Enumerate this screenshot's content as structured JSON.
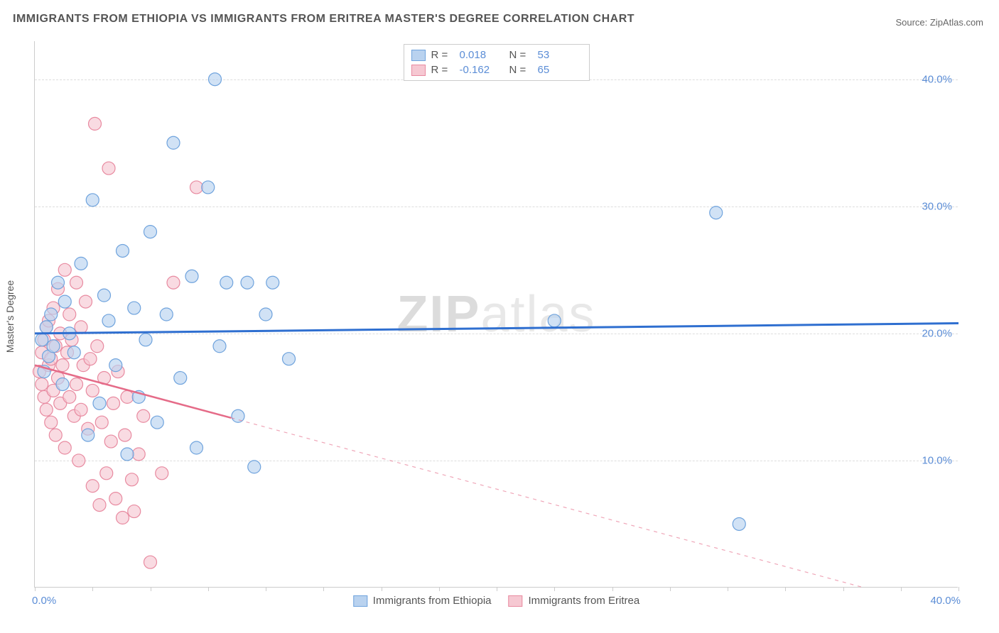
{
  "title": "IMMIGRANTS FROM ETHIOPIA VS IMMIGRANTS FROM ERITREA MASTER'S DEGREE CORRELATION CHART",
  "source": "Source: ZipAtlas.com",
  "ylabel": "Master's Degree",
  "watermark_a": "ZIP",
  "watermark_b": "atlas",
  "chart": {
    "type": "scatter",
    "xlim": [
      0,
      40
    ],
    "ylim": [
      0,
      43
    ],
    "yticks": [
      10,
      20,
      30,
      40
    ],
    "ytick_labels": [
      "10.0%",
      "20.0%",
      "30.0%",
      "40.0%"
    ],
    "xtick_left": "0.0%",
    "xtick_right": "40.0%",
    "background_color": "#ffffff",
    "grid_color": "#dddddd",
    "axis_color": "#cccccc",
    "series": [
      {
        "name": "Immigrants from Ethiopia",
        "color_fill": "#b9d2ef",
        "color_stroke": "#6fa3dd",
        "marker_radius": 9,
        "marker_opacity": 0.65,
        "r": "0.018",
        "n": "53",
        "trend": {
          "y_at_x0": 20.0,
          "y_at_xmax": 20.8,
          "stroke": "#2f6fd0",
          "width": 3,
          "dash_after_x": null
        },
        "points": [
          [
            0.3,
            19.5
          ],
          [
            0.4,
            17.0
          ],
          [
            0.5,
            20.5
          ],
          [
            0.6,
            18.2
          ],
          [
            0.7,
            21.5
          ],
          [
            0.8,
            19.0
          ],
          [
            1.0,
            24.0
          ],
          [
            1.2,
            16.0
          ],
          [
            1.3,
            22.5
          ],
          [
            1.5,
            20.0
          ],
          [
            1.7,
            18.5
          ],
          [
            2.0,
            25.5
          ],
          [
            2.3,
            12.0
          ],
          [
            2.5,
            30.5
          ],
          [
            2.8,
            14.5
          ],
          [
            3.0,
            23.0
          ],
          [
            3.2,
            21.0
          ],
          [
            3.5,
            17.5
          ],
          [
            3.8,
            26.5
          ],
          [
            4.0,
            10.5
          ],
          [
            4.3,
            22.0
          ],
          [
            4.5,
            15.0
          ],
          [
            4.8,
            19.5
          ],
          [
            5.0,
            28.0
          ],
          [
            5.3,
            13.0
          ],
          [
            5.7,
            21.5
          ],
          [
            6.0,
            35.0
          ],
          [
            6.3,
            16.5
          ],
          [
            6.8,
            24.5
          ],
          [
            7.0,
            11.0
          ],
          [
            7.5,
            31.5
          ],
          [
            7.8,
            40.0
          ],
          [
            8.0,
            19.0
          ],
          [
            8.3,
            24.0
          ],
          [
            8.8,
            13.5
          ],
          [
            9.2,
            24.0
          ],
          [
            9.5,
            9.5
          ],
          [
            10.0,
            21.5
          ],
          [
            10.3,
            24.0
          ],
          [
            11.0,
            18.0
          ],
          [
            22.5,
            21.0
          ],
          [
            29.5,
            29.5
          ],
          [
            30.5,
            5.0
          ]
        ]
      },
      {
        "name": "Immigrants from Eritrea",
        "color_fill": "#f6c8d2",
        "color_stroke": "#e88aa0",
        "marker_radius": 9,
        "marker_opacity": 0.65,
        "r": "-0.162",
        "n": "65",
        "trend": {
          "y_at_x0": 17.5,
          "y_at_xmax": -2.0,
          "stroke": "#e56b88",
          "width": 2.5,
          "dash_after_x": 8.5
        },
        "points": [
          [
            0.2,
            17.0
          ],
          [
            0.3,
            18.5
          ],
          [
            0.3,
            16.0
          ],
          [
            0.4,
            19.5
          ],
          [
            0.4,
            15.0
          ],
          [
            0.5,
            20.5
          ],
          [
            0.5,
            14.0
          ],
          [
            0.6,
            17.5
          ],
          [
            0.6,
            21.0
          ],
          [
            0.7,
            13.0
          ],
          [
            0.7,
            18.0
          ],
          [
            0.8,
            22.0
          ],
          [
            0.8,
            15.5
          ],
          [
            0.9,
            19.0
          ],
          [
            0.9,
            12.0
          ],
          [
            1.0,
            23.5
          ],
          [
            1.0,
            16.5
          ],
          [
            1.1,
            20.0
          ],
          [
            1.1,
            14.5
          ],
          [
            1.2,
            17.5
          ],
          [
            1.3,
            25.0
          ],
          [
            1.3,
            11.0
          ],
          [
            1.4,
            18.5
          ],
          [
            1.5,
            21.5
          ],
          [
            1.5,
            15.0
          ],
          [
            1.6,
            19.5
          ],
          [
            1.7,
            13.5
          ],
          [
            1.8,
            24.0
          ],
          [
            1.8,
            16.0
          ],
          [
            1.9,
            10.0
          ],
          [
            2.0,
            20.5
          ],
          [
            2.0,
            14.0
          ],
          [
            2.1,
            17.5
          ],
          [
            2.2,
            22.5
          ],
          [
            2.3,
            12.5
          ],
          [
            2.4,
            18.0
          ],
          [
            2.5,
            8.0
          ],
          [
            2.5,
            15.5
          ],
          [
            2.6,
            36.5
          ],
          [
            2.7,
            19.0
          ],
          [
            2.8,
            6.5
          ],
          [
            2.9,
            13.0
          ],
          [
            3.0,
            16.5
          ],
          [
            3.1,
            9.0
          ],
          [
            3.2,
            33.0
          ],
          [
            3.3,
            11.5
          ],
          [
            3.4,
            14.5
          ],
          [
            3.5,
            7.0
          ],
          [
            3.6,
            17.0
          ],
          [
            3.8,
            5.5
          ],
          [
            3.9,
            12.0
          ],
          [
            4.0,
            15.0
          ],
          [
            4.2,
            8.5
          ],
          [
            4.3,
            6.0
          ],
          [
            4.5,
            10.5
          ],
          [
            4.7,
            13.5
          ],
          [
            5.0,
            2.0
          ],
          [
            5.5,
            9.0
          ],
          [
            6.0,
            24.0
          ],
          [
            7.0,
            31.5
          ]
        ]
      }
    ]
  },
  "legend_top": {
    "r_label": "R =",
    "n_label": "N ="
  },
  "colors": {
    "tick_text": "#5b8dd6",
    "title_text": "#555555"
  }
}
